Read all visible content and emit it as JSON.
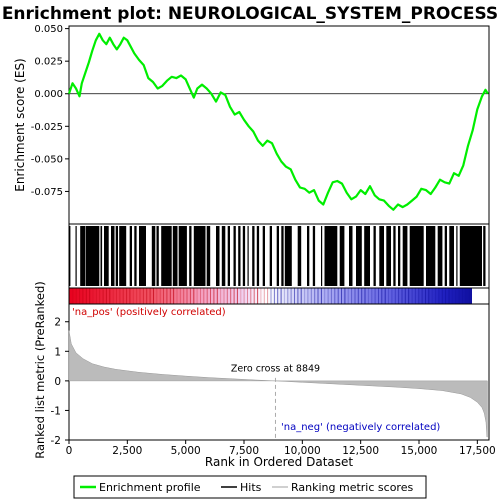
{
  "chart_data": {
    "type": "line",
    "title": "Enrichment plot: NEUROLOGICAL_SYSTEM_PROCESS",
    "xlabel": "Rank in Ordered Dataset",
    "xlim": [
      0,
      18000
    ],
    "x_ticks": [
      0,
      2500,
      5000,
      7500,
      10000,
      12500,
      15000,
      17500
    ],
    "x_tick_labels": [
      "0",
      "2,500",
      "5,000",
      "7,500",
      "10,000",
      "12,500",
      "15,000",
      "17,500"
    ],
    "es_panel": {
      "ylabel": "Enrichment score (ES)",
      "ylim": [
        -0.1,
        0.052
      ],
      "y_ticks": [
        0.05,
        0.025,
        0.0,
        -0.025,
        -0.05,
        -0.075
      ],
      "y_tick_labels": [
        "0.050",
        "0.025",
        "0.000",
        "-0.025",
        "-0.050",
        "-0.075"
      ],
      "series_color": "#00ee00",
      "points": [
        [
          0,
          0.0
        ],
        [
          150,
          0.008
        ],
        [
          300,
          0.004
        ],
        [
          450,
          -0.002
        ],
        [
          550,
          0.008
        ],
        [
          700,
          0.016
        ],
        [
          850,
          0.024
        ],
        [
          1000,
          0.033
        ],
        [
          1150,
          0.041
        ],
        [
          1300,
          0.046
        ],
        [
          1450,
          0.041
        ],
        [
          1600,
          0.038
        ],
        [
          1750,
          0.043
        ],
        [
          1900,
          0.038
        ],
        [
          2050,
          0.034
        ],
        [
          2200,
          0.038
        ],
        [
          2350,
          0.043
        ],
        [
          2500,
          0.041
        ],
        [
          2650,
          0.036
        ],
        [
          2800,
          0.031
        ],
        [
          3000,
          0.026
        ],
        [
          3200,
          0.022
        ],
        [
          3400,
          0.012
        ],
        [
          3600,
          0.009
        ],
        [
          3800,
          0.004
        ],
        [
          4000,
          0.006
        ],
        [
          4200,
          0.01
        ],
        [
          4400,
          0.013
        ],
        [
          4600,
          0.012
        ],
        [
          4800,
          0.014
        ],
        [
          5000,
          0.011
        ],
        [
          5200,
          0.003
        ],
        [
          5350,
          -0.003
        ],
        [
          5500,
          0.004
        ],
        [
          5700,
          0.007
        ],
        [
          5900,
          0.004
        ],
        [
          6100,
          0.0
        ],
        [
          6300,
          -0.006
        ],
        [
          6500,
          0.001
        ],
        [
          6700,
          -0.001
        ],
        [
          6900,
          -0.01
        ],
        [
          7100,
          -0.016
        ],
        [
          7300,
          -0.014
        ],
        [
          7500,
          -0.02
        ],
        [
          7700,
          -0.025
        ],
        [
          7900,
          -0.029
        ],
        [
          8100,
          -0.036
        ],
        [
          8300,
          -0.04
        ],
        [
          8500,
          -0.036
        ],
        [
          8700,
          -0.038
        ],
        [
          8900,
          -0.046
        ],
        [
          9100,
          -0.052
        ],
        [
          9300,
          -0.056
        ],
        [
          9500,
          -0.058
        ],
        [
          9700,
          -0.066
        ],
        [
          9900,
          -0.072
        ],
        [
          10100,
          -0.073
        ],
        [
          10300,
          -0.076
        ],
        [
          10500,
          -0.074
        ],
        [
          10700,
          -0.082
        ],
        [
          10900,
          -0.085
        ],
        [
          11100,
          -0.076
        ],
        [
          11300,
          -0.068
        ],
        [
          11500,
          -0.067
        ],
        [
          11700,
          -0.069
        ],
        [
          11900,
          -0.076
        ],
        [
          12100,
          -0.081
        ],
        [
          12300,
          -0.079
        ],
        [
          12500,
          -0.074
        ],
        [
          12700,
          -0.077
        ],
        [
          12900,
          -0.071
        ],
        [
          13100,
          -0.078
        ],
        [
          13300,
          -0.081
        ],
        [
          13500,
          -0.082
        ],
        [
          13700,
          -0.086
        ],
        [
          13900,
          -0.089
        ],
        [
          14100,
          -0.085
        ],
        [
          14300,
          -0.087
        ],
        [
          14500,
          -0.085
        ],
        [
          14700,
          -0.082
        ],
        [
          14900,
          -0.079
        ],
        [
          15100,
          -0.073
        ],
        [
          15300,
          -0.074
        ],
        [
          15500,
          -0.077
        ],
        [
          15700,
          -0.072
        ],
        [
          15900,
          -0.066
        ],
        [
          16100,
          -0.068
        ],
        [
          16300,
          -0.069
        ],
        [
          16500,
          -0.061
        ],
        [
          16700,
          -0.063
        ],
        [
          16900,
          -0.055
        ],
        [
          17100,
          -0.04
        ],
        [
          17300,
          -0.028
        ],
        [
          17500,
          -0.012
        ],
        [
          17700,
          -0.002
        ],
        [
          17850,
          0.003
        ],
        [
          17950,
          0.0
        ]
      ]
    },
    "hits_panel": {
      "label": "Hits",
      "hit_segments": [
        [
          20,
          60
        ],
        [
          280,
          330
        ],
        [
          480,
          700
        ],
        [
          720,
          1300
        ],
        [
          1350,
          1420
        ],
        [
          1500,
          1700
        ],
        [
          1800,
          1950
        ],
        [
          2000,
          2100
        ],
        [
          2150,
          2450
        ],
        [
          2600,
          2700
        ],
        [
          2800,
          2900
        ],
        [
          3000,
          3300
        ],
        [
          3550,
          3700
        ],
        [
          3750,
          3850
        ],
        [
          3950,
          4400
        ],
        [
          4450,
          4650
        ],
        [
          4700,
          5050
        ],
        [
          5150,
          5250
        ],
        [
          5350,
          5850
        ],
        [
          5900,
          6050
        ],
        [
          6300,
          6450
        ],
        [
          6550,
          6700
        ],
        [
          6800,
          6900
        ],
        [
          7050,
          7150
        ],
        [
          7250,
          7350
        ],
        [
          7450,
          7550
        ],
        [
          7650,
          7700
        ],
        [
          7850,
          7950
        ],
        [
          8050,
          8150
        ],
        [
          8300,
          8400
        ],
        [
          8600,
          8700
        ],
        [
          8900,
          9000
        ],
        [
          9100,
          9200
        ],
        [
          9250,
          9550
        ],
        [
          9800,
          9950
        ],
        [
          10200,
          10300
        ],
        [
          10450,
          10550
        ],
        [
          10800,
          10850
        ],
        [
          10950,
          11500
        ],
        [
          11600,
          11800
        ],
        [
          12000,
          12150
        ],
        [
          12300,
          12550
        ],
        [
          12650,
          12900
        ],
        [
          13050,
          13150
        ],
        [
          13300,
          13500
        ],
        [
          13600,
          13800
        ],
        [
          13900,
          14000
        ],
        [
          14100,
          14200
        ],
        [
          14300,
          14500
        ],
        [
          14600,
          15200
        ],
        [
          15300,
          15700
        ],
        [
          15800,
          16000
        ],
        [
          16100,
          16200
        ],
        [
          16300,
          16500
        ],
        [
          16600,
          16650
        ],
        [
          16750,
          17700
        ],
        [
          17750,
          17850
        ]
      ]
    },
    "colorbar": {
      "stops": [
        [
          0.0,
          "#e8001e"
        ],
        [
          0.2,
          "#f05060"
        ],
        [
          0.33,
          "#f4a0c0"
        ],
        [
          0.43,
          "#f0d0f0"
        ],
        [
          0.49,
          "#ffffff"
        ],
        [
          0.55,
          "#d8d8f8"
        ],
        [
          0.66,
          "#a0a0f0"
        ],
        [
          0.8,
          "#6060e0"
        ],
        [
          0.93,
          "#2020c0"
        ],
        [
          1.0,
          "#1010a0"
        ]
      ],
      "pos_label": "'na_pos' (positively correlated)",
      "neg_label": "'na_neg' (negatively correlated)"
    },
    "metric_panel": {
      "ylabel": "Ranked list metric (PreRanked)",
      "ylim": [
        -2.0,
        2.6
      ],
      "y_ticks": [
        2,
        1,
        0,
        -1,
        -2
      ],
      "y_tick_labels": [
        "2",
        "1",
        "0",
        "-1",
        "-2"
      ],
      "zero_cross": 8849,
      "zero_cross_label": "Zero cross at 8849",
      "points": [
        [
          0,
          1.7
        ],
        [
          100,
          1.25
        ],
        [
          300,
          0.95
        ],
        [
          600,
          0.75
        ],
        [
          1000,
          0.58
        ],
        [
          1500,
          0.47
        ],
        [
          2000,
          0.39
        ],
        [
          2500,
          0.34
        ],
        [
          3000,
          0.29
        ],
        [
          4000,
          0.22
        ],
        [
          5000,
          0.16
        ],
        [
          6000,
          0.11
        ],
        [
          7000,
          0.07
        ],
        [
          8000,
          0.03
        ],
        [
          8849,
          0.0
        ],
        [
          10000,
          -0.05
        ],
        [
          11000,
          -0.09
        ],
        [
          12000,
          -0.13
        ],
        [
          13000,
          -0.17
        ],
        [
          14000,
          -0.21
        ],
        [
          15000,
          -0.26
        ],
        [
          16000,
          -0.33
        ],
        [
          16800,
          -0.44
        ],
        [
          17200,
          -0.56
        ],
        [
          17500,
          -0.72
        ],
        [
          17700,
          -0.9
        ],
        [
          17800,
          -1.1
        ],
        [
          17870,
          -1.4
        ],
        [
          17910,
          -1.9
        ],
        [
          17930,
          -1.9
        ]
      ]
    },
    "legend": [
      {
        "label": "Enrichment profile",
        "color": "#00ee00"
      },
      {
        "label": "Hits",
        "color": "#000000"
      },
      {
        "label": "Ranking metric scores",
        "color": "#c0c0c0"
      }
    ]
  }
}
